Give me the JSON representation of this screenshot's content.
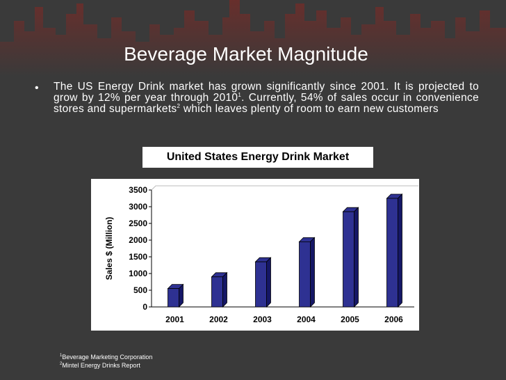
{
  "slide": {
    "title": "Beverage Market Magnitude",
    "bullet_marker": "•",
    "bullet_text_1": "The US Energy Drink market has grown significantly since 2001. It is projected to grow by 12% per year through 2010",
    "bullet_sup_1": "1",
    "bullet_text_2": ". Currently, 54% of sales occur in convenience stores and supermarkets",
    "bullet_sup_2": "2",
    "bullet_text_3": " which leaves plenty of room to earn new customers"
  },
  "footnotes": [
    {
      "marker": "1",
      "text": "Beverage Marketing Corporation"
    },
    {
      "marker": "2",
      "text": "Mintel Energy Drinks Report"
    }
  ],
  "colors": {
    "background": "#3a3a3a",
    "skyline": "#5b2a28",
    "bar_face": "#2e3192",
    "bar_side": "#151766"
  },
  "chart_data": {
    "type": "bar",
    "title": "United States Energy Drink Market",
    "xlabel": "",
    "ylabel": "Sales $ (Million)",
    "categories": [
      "2001",
      "2002",
      "2003",
      "2004",
      "2005",
      "2006"
    ],
    "values": [
      550,
      900,
      1350,
      1950,
      2850,
      3250
    ],
    "ylim": [
      0,
      3500
    ],
    "yticks": [
      0,
      500,
      1000,
      1500,
      2000,
      2500,
      3000,
      3500
    ],
    "grid": false,
    "legend": "none",
    "style": "3d"
  }
}
